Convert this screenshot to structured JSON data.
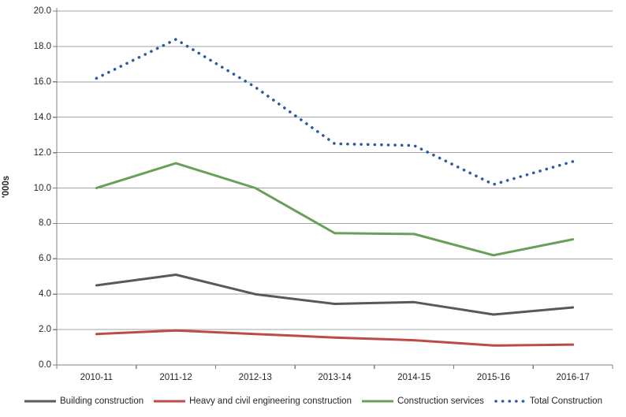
{
  "page": {
    "background": "#ffffff"
  },
  "chart_data": {
    "type": "line",
    "title": "",
    "xlabel": "",
    "ylabel": "'000s",
    "ylim": [
      0,
      20
    ],
    "ytick_step": 2,
    "yticks": [
      "0.0",
      "2.0",
      "4.0",
      "6.0",
      "8.0",
      "10.0",
      "12.0",
      "14.0",
      "16.0",
      "18.0",
      "20.0"
    ],
    "grid": "horizontal",
    "legend_position": "bottom",
    "categories": [
      "2010-11",
      "2011-12",
      "2012-13",
      "2013-14",
      "2014-15",
      "2015-16",
      "2016-17"
    ],
    "series": [
      {
        "name": "Building construction",
        "style": "solid",
        "color": "#595959",
        "values": [
          4.5,
          5.1,
          4.0,
          3.45,
          3.55,
          2.85,
          3.25
        ]
      },
      {
        "name": "Heavy and civil engineering construction",
        "style": "solid",
        "color": "#BE4B48",
        "values": [
          1.75,
          1.95,
          1.75,
          1.55,
          1.4,
          1.1,
          1.15
        ]
      },
      {
        "name": "Construction services",
        "style": "solid",
        "color": "#68A05A",
        "values": [
          10.0,
          11.4,
          10.0,
          7.45,
          7.4,
          6.2,
          7.1
        ]
      },
      {
        "name": "Total Construction",
        "style": "dotted",
        "color": "#2A5CA0",
        "values": [
          16.2,
          18.4,
          15.7,
          12.5,
          12.4,
          10.2,
          11.5
        ]
      }
    ],
    "axis_color": "#808080",
    "grid_color": "#A3A3A3",
    "text_color": "#262626"
  }
}
